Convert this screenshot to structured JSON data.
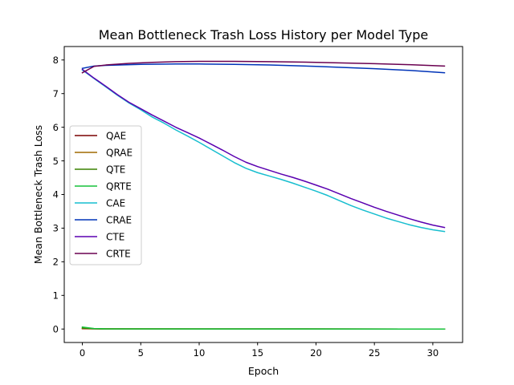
{
  "chart_data": {
    "type": "line",
    "title": "Mean Bottleneck Trash Loss History per Model Type",
    "xlabel": "Epoch",
    "ylabel": "Mean Bottleneck Trash Loss",
    "xlim": [
      -1.55,
      32.55
    ],
    "ylim": [
      -0.4,
      8.4
    ],
    "xticks": [
      0,
      5,
      10,
      15,
      20,
      25,
      30
    ],
    "yticks": [
      0,
      1,
      2,
      3,
      4,
      5,
      6,
      7,
      8
    ],
    "grid": false,
    "legend_position": "center-left",
    "series": [
      {
        "name": "QAE",
        "color": "#7a0000",
        "x": [
          0,
          1,
          2,
          31
        ],
        "y": [
          0.01,
          0.005,
          0.003,
          0.0
        ]
      },
      {
        "name": "QRAE",
        "color": "#a06a00",
        "x": [
          0,
          1,
          2,
          31
        ],
        "y": [
          0.02,
          0.008,
          0.004,
          0.0
        ]
      },
      {
        "name": "QTE",
        "color": "#3a8000",
        "x": [
          0,
          1,
          2,
          31
        ],
        "y": [
          0.03,
          0.01,
          0.005,
          0.0
        ]
      },
      {
        "name": "QRTE",
        "color": "#17c23a",
        "x": [
          0,
          1,
          2,
          31
        ],
        "y": [
          0.06,
          0.015,
          0.005,
          0.0
        ]
      },
      {
        "name": "CAE",
        "color": "#17becf",
        "x": [
          0,
          1,
          2,
          3,
          4,
          5,
          6,
          7,
          8,
          9,
          10,
          11,
          12,
          13,
          14,
          15,
          16,
          17,
          18,
          19,
          20,
          21,
          22,
          23,
          24,
          25,
          26,
          27,
          28,
          29,
          30,
          31
        ],
        "y": [
          7.7,
          7.45,
          7.2,
          6.95,
          6.72,
          6.52,
          6.3,
          6.12,
          5.92,
          5.74,
          5.55,
          5.35,
          5.15,
          4.95,
          4.78,
          4.65,
          4.55,
          4.45,
          4.34,
          4.22,
          4.1,
          3.97,
          3.82,
          3.67,
          3.54,
          3.42,
          3.3,
          3.2,
          3.1,
          3.02,
          2.95,
          2.9
        ]
      },
      {
        "name": "CRAE",
        "color": "#0033b8",
        "x": [
          0,
          1,
          2,
          5,
          8,
          10,
          13,
          16,
          20,
          25,
          28,
          31
        ],
        "y": [
          7.75,
          7.82,
          7.84,
          7.87,
          7.88,
          7.88,
          7.87,
          7.85,
          7.81,
          7.74,
          7.69,
          7.62
        ]
      },
      {
        "name": "CTE",
        "color": "#5a00b0",
        "x": [
          0,
          1,
          2,
          3,
          4,
          5,
          6,
          7,
          8,
          9,
          10,
          11,
          12,
          13,
          14,
          15,
          16,
          17,
          18,
          19,
          20,
          21,
          22,
          23,
          24,
          25,
          26,
          27,
          28,
          29,
          30,
          31
        ],
        "y": [
          7.72,
          7.46,
          7.22,
          6.97,
          6.74,
          6.55,
          6.36,
          6.18,
          6.0,
          5.84,
          5.68,
          5.5,
          5.32,
          5.13,
          4.96,
          4.83,
          4.72,
          4.61,
          4.51,
          4.4,
          4.28,
          4.16,
          4.02,
          3.88,
          3.75,
          3.62,
          3.5,
          3.39,
          3.28,
          3.18,
          3.09,
          3.02
        ]
      },
      {
        "name": "CRTE",
        "color": "#6a0050",
        "x": [
          0,
          1,
          2,
          4,
          6,
          8,
          10,
          13,
          16,
          20,
          25,
          28,
          31
        ],
        "y": [
          7.62,
          7.81,
          7.85,
          7.9,
          7.93,
          7.95,
          7.96,
          7.96,
          7.95,
          7.93,
          7.89,
          7.86,
          7.82
        ]
      }
    ]
  }
}
